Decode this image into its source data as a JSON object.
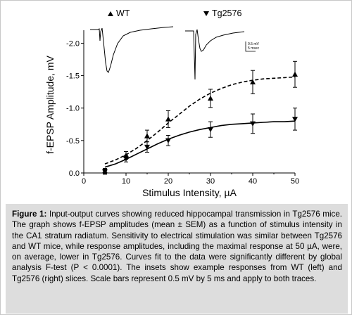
{
  "chart_data": {
    "type": "line",
    "xlabel": "Stimulus Intensity, µA",
    "ylabel": "f-EPSP Amplitude, mV",
    "xlim": [
      0,
      50
    ],
    "ylim": [
      0,
      -2.2
    ],
    "x_ticks": [
      "0",
      "10",
      "20",
      "30",
      "40",
      "50"
    ],
    "y_ticks": [
      "0.0",
      "-0.5",
      "-1.0",
      "-1.5",
      "-2.0"
    ],
    "grid": false,
    "legend_placement": "top",
    "series": [
      {
        "name": "WT",
        "marker": "triangle-up",
        "line_style": "dashed",
        "x": [
          5,
          10,
          15,
          20,
          30,
          40,
          50
        ],
        "y": [
          -0.03,
          -0.27,
          -0.57,
          -0.83,
          -1.15,
          -1.4,
          -1.52
        ],
        "err": [
          0.04,
          0.06,
          0.09,
          0.13,
          0.14,
          0.18,
          0.2
        ],
        "fit_x": [
          5,
          7.5,
          10,
          12.5,
          15,
          17.5,
          20,
          22.5,
          25,
          27.5,
          30,
          32.5,
          35,
          37.5,
          40,
          42.5,
          45,
          47.5,
          50
        ],
        "fit_y": [
          -0.14,
          -0.2,
          -0.28,
          -0.38,
          -0.5,
          -0.63,
          -0.77,
          -0.9,
          -1.03,
          -1.14,
          -1.23,
          -1.3,
          -1.36,
          -1.4,
          -1.43,
          -1.45,
          -1.46,
          -1.47,
          -1.48
        ]
      },
      {
        "name": "Tg2576",
        "marker": "triangle-down",
        "line_style": "solid",
        "x": [
          5,
          10,
          15,
          20,
          30,
          40,
          50
        ],
        "y": [
          -0.02,
          -0.22,
          -0.4,
          -0.5,
          -0.67,
          -0.76,
          -0.83
        ],
        "err": [
          0.04,
          0.05,
          0.08,
          0.08,
          0.12,
          0.15,
          0.17
        ],
        "fit_x": [
          5,
          7.5,
          10,
          12.5,
          15,
          17.5,
          20,
          22.5,
          25,
          27.5,
          30,
          32.5,
          35,
          37.5,
          40,
          42.5,
          45,
          47.5,
          50
        ],
        "fit_y": [
          -0.09,
          -0.14,
          -0.21,
          -0.29,
          -0.37,
          -0.45,
          -0.52,
          -0.58,
          -0.63,
          -0.67,
          -0.7,
          -0.73,
          -0.75,
          -0.76,
          -0.77,
          -0.78,
          -0.79,
          -0.79,
          -0.8
        ]
      }
    ],
    "inset_scale_label_mv": "0.5 mV",
    "inset_scale_label_ms": "5 msec"
  },
  "caption": {
    "label": "Figure 1:",
    "text": " Input-output curves showing reduced hippocampal transmission in Tg2576 mice. The graph shows f-EPSP amplitudes (mean ± SEM) as a function of stimulus intensity in the CA1 stratum radiatum. Sensitivity to electrical stimulation was similar between Tg2576 and WT mice, while response amplitudes, including the maximal response at 50 µA, were, on average, lower in Tg2576. Curves fit to the data were significantly different by global analysis F-test (P < 0.0001). The insets show example responses from WT (left) and Tg2576 (right) slices. Scale bars represent 0.5 mV by 5 ms and apply to both traces."
  }
}
